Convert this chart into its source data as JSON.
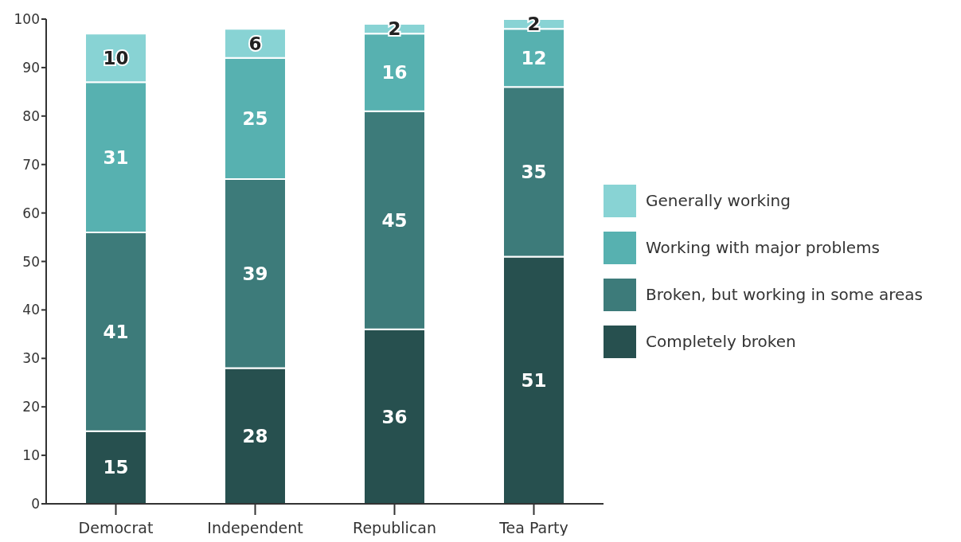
{
  "chart_data": {
    "type": "bar",
    "stacked": true,
    "categories": [
      "Democrat",
      "Independent",
      "Republican",
      "Tea Party"
    ],
    "series": [
      {
        "name": "Completely broken",
        "color": "#27504f",
        "values": [
          15,
          28,
          36,
          51
        ]
      },
      {
        "name": "Broken, but working in some areas",
        "color": "#3d7b7a",
        "values": [
          41,
          39,
          45,
          35
        ]
      },
      {
        "name": "Working with major problems",
        "color": "#57b1b0",
        "values": [
          31,
          25,
          16,
          12
        ]
      },
      {
        "name": "Generally working",
        "color": "#88d3d4",
        "values": [
          10,
          6,
          2,
          2
        ]
      }
    ],
    "ylim": [
      0,
      100
    ],
    "yticks": [
      0,
      10,
      20,
      30,
      40,
      50,
      60,
      70,
      80,
      90,
      100
    ],
    "grid": false,
    "legend": "right",
    "data_labels": true
  }
}
